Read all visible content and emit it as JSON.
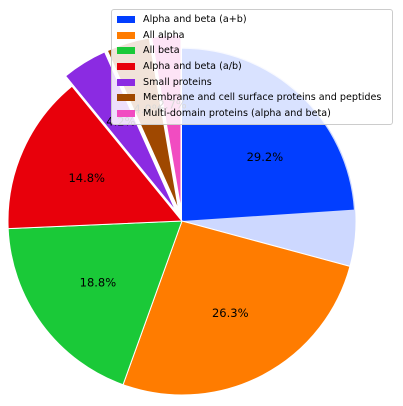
{
  "chart_data": {
    "type": "pie",
    "categories": [
      "Alpha and beta (a+b)",
      "All alpha",
      "All beta",
      "Alpha and beta (a/b)",
      "Small proteins",
      "Membrane and cell surface proteins and peptides",
      "Multi-domain proteins (alpha and beta)"
    ],
    "values": [
      29.2,
      26.3,
      18.8,
      14.8,
      4.2,
      4.0,
      2.7
    ],
    "value_labels": [
      "29.2%",
      "26.3%",
      "18.8%",
      "14.8%",
      "4.2%",
      "4.0%",
      "2.7%"
    ],
    "colors": [
      "#023eff",
      "#ff7c00",
      "#1ac938",
      "#e8000b",
      "#8b2be2",
      "#9f4800",
      "#f14cc1"
    ],
    "highlighted_slice_color": "#cdd8ff",
    "exploded_categories": [
      "Small proteins",
      "Membrane and cell surface proteins and peptides",
      "Multi-domain proteins (alpha and beta)"
    ],
    "legend_position": "top-right",
    "title": ""
  }
}
